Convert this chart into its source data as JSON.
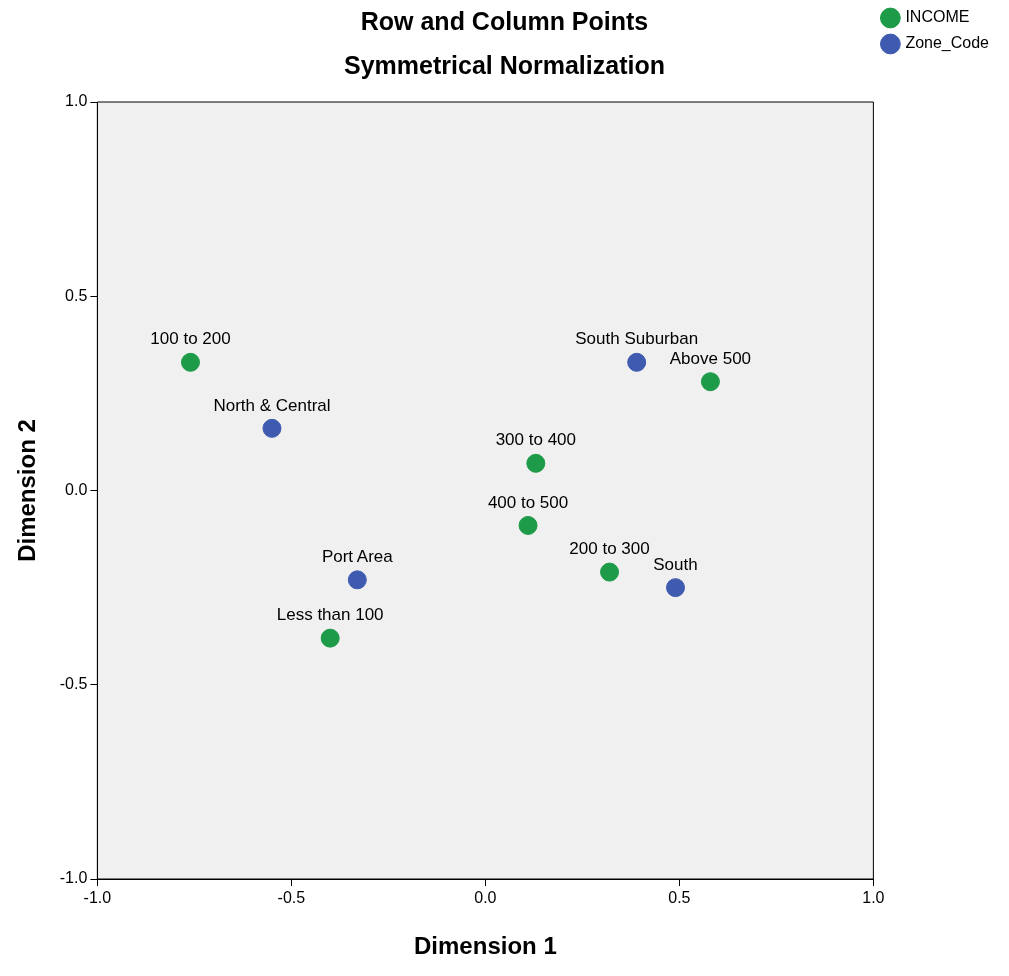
{
  "chart_data": {
    "type": "scatter",
    "title": "Row and Column Points",
    "subtitle": "Symmetrical Normalization",
    "xlabel": "Dimension 1",
    "ylabel": "Dimension 2",
    "series": [
      {
        "name": "INCOME",
        "color": "#1e9b48",
        "x": [
          -0.76,
          -0.4,
          0.32,
          0.13,
          0.11,
          0.58
        ],
        "values": [
          0.33,
          -0.38,
          -0.21,
          0.07,
          -0.09,
          0.28
        ]
      },
      {
        "name": "Zone_Code",
        "color": "#3e5bb0",
        "x": [
          -0.55,
          -0.33,
          0.49,
          0.39
        ],
        "values": [
          0.16,
          -0.23,
          -0.25,
          0.33
        ]
      }
    ],
    "annotations": [
      {
        "text": "100 to 200",
        "x": -0.76,
        "y": 0.33
      },
      {
        "text": "Less than 100",
        "x": -0.4,
        "y": -0.38
      },
      {
        "text": "200 to 300",
        "x": 0.32,
        "y": -0.21
      },
      {
        "text": "300 to 400",
        "x": 0.13,
        "y": 0.07
      },
      {
        "text": "400 to 500",
        "x": 0.11,
        "y": -0.09
      },
      {
        "text": "Above 500",
        "x": 0.58,
        "y": 0.28
      },
      {
        "text": "North & Central",
        "x": -0.55,
        "y": 0.16
      },
      {
        "text": "Port Area",
        "x": -0.33,
        "y": -0.23
      },
      {
        "text": "South",
        "x": 0.49,
        "y": -0.25
      },
      {
        "text": "South Suburban",
        "x": 0.39,
        "y": 0.33
      }
    ],
    "xlim": [
      -1,
      1
    ],
    "ylim": [
      -1,
      1
    ],
    "xticks": [
      {
        "value": -1,
        "label": "-1.0"
      },
      {
        "value": -0.5,
        "label": "-0.5"
      },
      {
        "value": 0,
        "label": "0.0"
      },
      {
        "value": 0.5,
        "label": "0.5"
      },
      {
        "value": 1,
        "label": "1.0"
      }
    ],
    "yticks": [
      {
        "value": -1,
        "label": "-1.0"
      },
      {
        "value": -0.5,
        "label": "-0.5"
      },
      {
        "value": 0,
        "label": "0.0"
      },
      {
        "value": 0.5,
        "label": "0.5"
      },
      {
        "value": 1,
        "label": "1.0"
      }
    ],
    "grid": false,
    "legend": "top right",
    "marker": "circle"
  }
}
